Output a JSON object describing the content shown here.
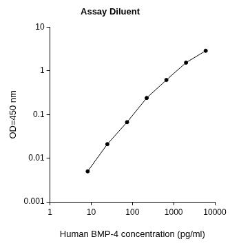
{
  "chart_data": {
    "type": "line",
    "title": "Assay Diluent",
    "x_label": "Human BMP-4 concentration (pg/ml)",
    "y_label": "OD=450 nm",
    "x": [
      8.2,
      24.6,
      74,
      222,
      667,
      2000,
      6000
    ],
    "values": [
      0.005,
      0.021,
      0.067,
      0.24,
      0.62,
      1.55,
      2.9
    ],
    "color": "#000000",
    "marker": "circle",
    "line_style": "solid",
    "log": true,
    "xlim": [
      1,
      10000
    ],
    "xticks": [
      1,
      10,
      100,
      1000,
      10000
    ],
    "ylim": [
      0.001,
      10
    ],
    "yticks": [
      0.001,
      0.01,
      0.1,
      1,
      10
    ],
    "grid": false
  }
}
